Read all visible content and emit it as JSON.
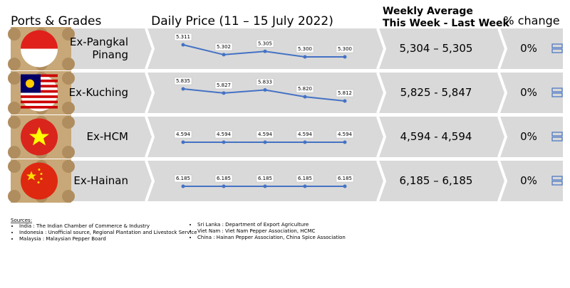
{
  "header": {
    "ports": "Ports & Grades",
    "daily": "Daily Price (11 – 15 July 2022)",
    "weekly": [
      "Weekly Average",
      "This Week - Last Week"
    ],
    "change": "% change"
  },
  "rows": [
    {
      "port": [
        "Ex-Pangkal",
        "Pinang"
      ],
      "values": [
        5.311,
        5.302,
        5.305,
        5.3,
        5.3
      ],
      "value_labels": [
        "5.311",
        "5.302",
        "5.305",
        "5.300",
        "5.300"
      ],
      "weekly": "5,304 – 5,305",
      "change": "0%"
    },
    {
      "port": [
        "Ex-Kuching"
      ],
      "values": [
        5.835,
        5.827,
        5.833,
        5.82,
        5.812
      ],
      "value_labels": [
        "5.835",
        "5.827",
        "5.833",
        "5.820",
        "5.812"
      ],
      "weekly": "5,825 - 5,847",
      "change": "0%"
    },
    {
      "port": [
        "Ex-HCM"
      ],
      "values": [
        4.594,
        4.594,
        4.594,
        4.594,
        4.594
      ],
      "value_labels": [
        "4.594",
        "4.594",
        "4.594",
        "4.594",
        "4.594"
      ],
      "weekly": "4,594 - 4,594",
      "change": "0%"
    },
    {
      "port": [
        "Ex-Hainan"
      ],
      "values": [
        6.185,
        6.185,
        6.185,
        6.185,
        6.185
      ],
      "value_labels": [
        "6.185",
        "6.185",
        "6.185",
        "6.185",
        "6.185"
      ],
      "weekly": "6,185 – 6,185",
      "change": "0%"
    }
  ],
  "sources": {
    "title": "Sources:",
    "left": [
      "India : The Indian Chamber of Commerce & Industry",
      "Indonesia : Unofficial source, Regional Plantation and Livestock Service",
      "Malaysia : Malaysian Pepper Board"
    ],
    "right": [
      "Sri Lanka : Department of Export Agriculture",
      "Viet Nam : Viet Nam Pepper Association, HCMC",
      "China : Hainan Pepper Association, China Spice Association"
    ]
  }
}
